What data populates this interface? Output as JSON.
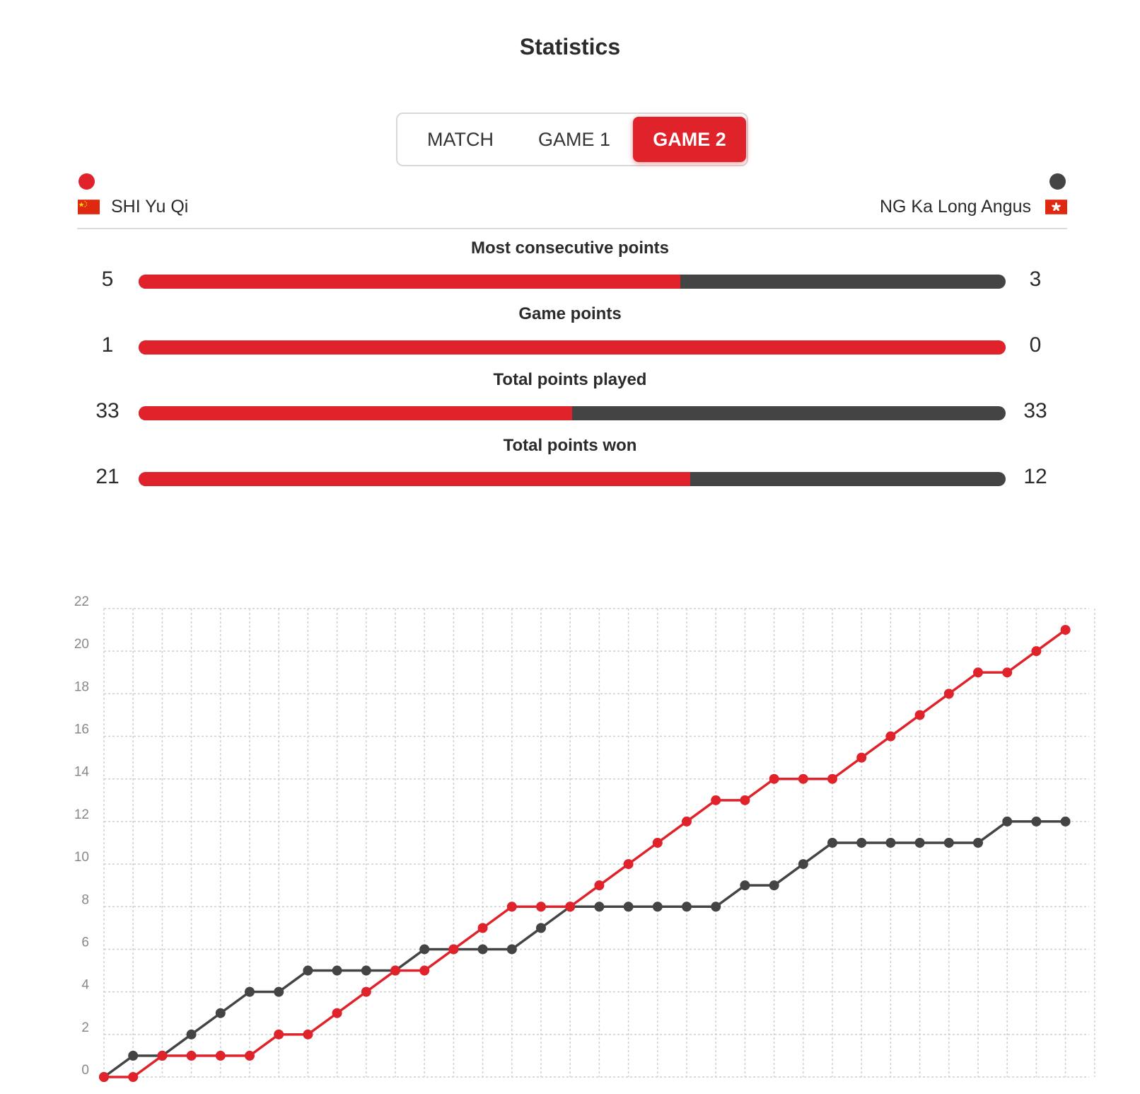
{
  "header": {
    "title": "Statistics"
  },
  "tabs": [
    {
      "label": "MATCH",
      "active": false
    },
    {
      "label": "GAME 1",
      "active": false
    },
    {
      "label": "GAME 2",
      "active": true
    }
  ],
  "colors": {
    "player1": "#e0222b",
    "player2": "#444444"
  },
  "players": {
    "left": {
      "name": "SHI Yu Qi",
      "flag_icon": "china-flag-icon"
    },
    "right": {
      "name": "NG Ka Long Angus",
      "flag_icon": "hong-kong-flag-icon"
    }
  },
  "stats": [
    {
      "label": "Most consecutive points",
      "left": "5",
      "right": "3",
      "left_share": 0.625
    },
    {
      "label": "Game points",
      "left": "1",
      "right": "0",
      "left_share": 1.0
    },
    {
      "label": "Total points played",
      "left": "33",
      "right": "33",
      "left_share": 0.5
    },
    {
      "label": "Total points won",
      "left": "21",
      "right": "12",
      "left_share": 0.636
    }
  ],
  "chart_data": {
    "type": "line",
    "title": "",
    "xlabel": "",
    "ylabel": "",
    "ylim": [
      0,
      22
    ],
    "yticks": [
      0,
      2,
      4,
      6,
      8,
      10,
      12,
      14,
      16,
      18,
      20,
      22
    ],
    "grid": true,
    "x": [
      0,
      1,
      2,
      3,
      4,
      5,
      6,
      7,
      8,
      9,
      10,
      11,
      12,
      13,
      14,
      15,
      16,
      17,
      18,
      19,
      20,
      21,
      22,
      23,
      24,
      25,
      26,
      27,
      28,
      29,
      30,
      31,
      32,
      33
    ],
    "series": [
      {
        "name": "SHI Yu Qi",
        "values": [
          0,
          0,
          1,
          1,
          1,
          1,
          2,
          2,
          3,
          4,
          5,
          5,
          6,
          7,
          8,
          8,
          8,
          9,
          10,
          11,
          12,
          13,
          13,
          14,
          14,
          14,
          15,
          16,
          17,
          18,
          19,
          19,
          20,
          21
        ]
      },
      {
        "name": "NG Ka Long Angus",
        "values": [
          0,
          1,
          1,
          2,
          3,
          4,
          4,
          5,
          5,
          5,
          5,
          6,
          6,
          6,
          6,
          7,
          8,
          8,
          8,
          8,
          8,
          8,
          9,
          9,
          10,
          11,
          11,
          11,
          11,
          11,
          11,
          12,
          12,
          12
        ]
      }
    ]
  }
}
